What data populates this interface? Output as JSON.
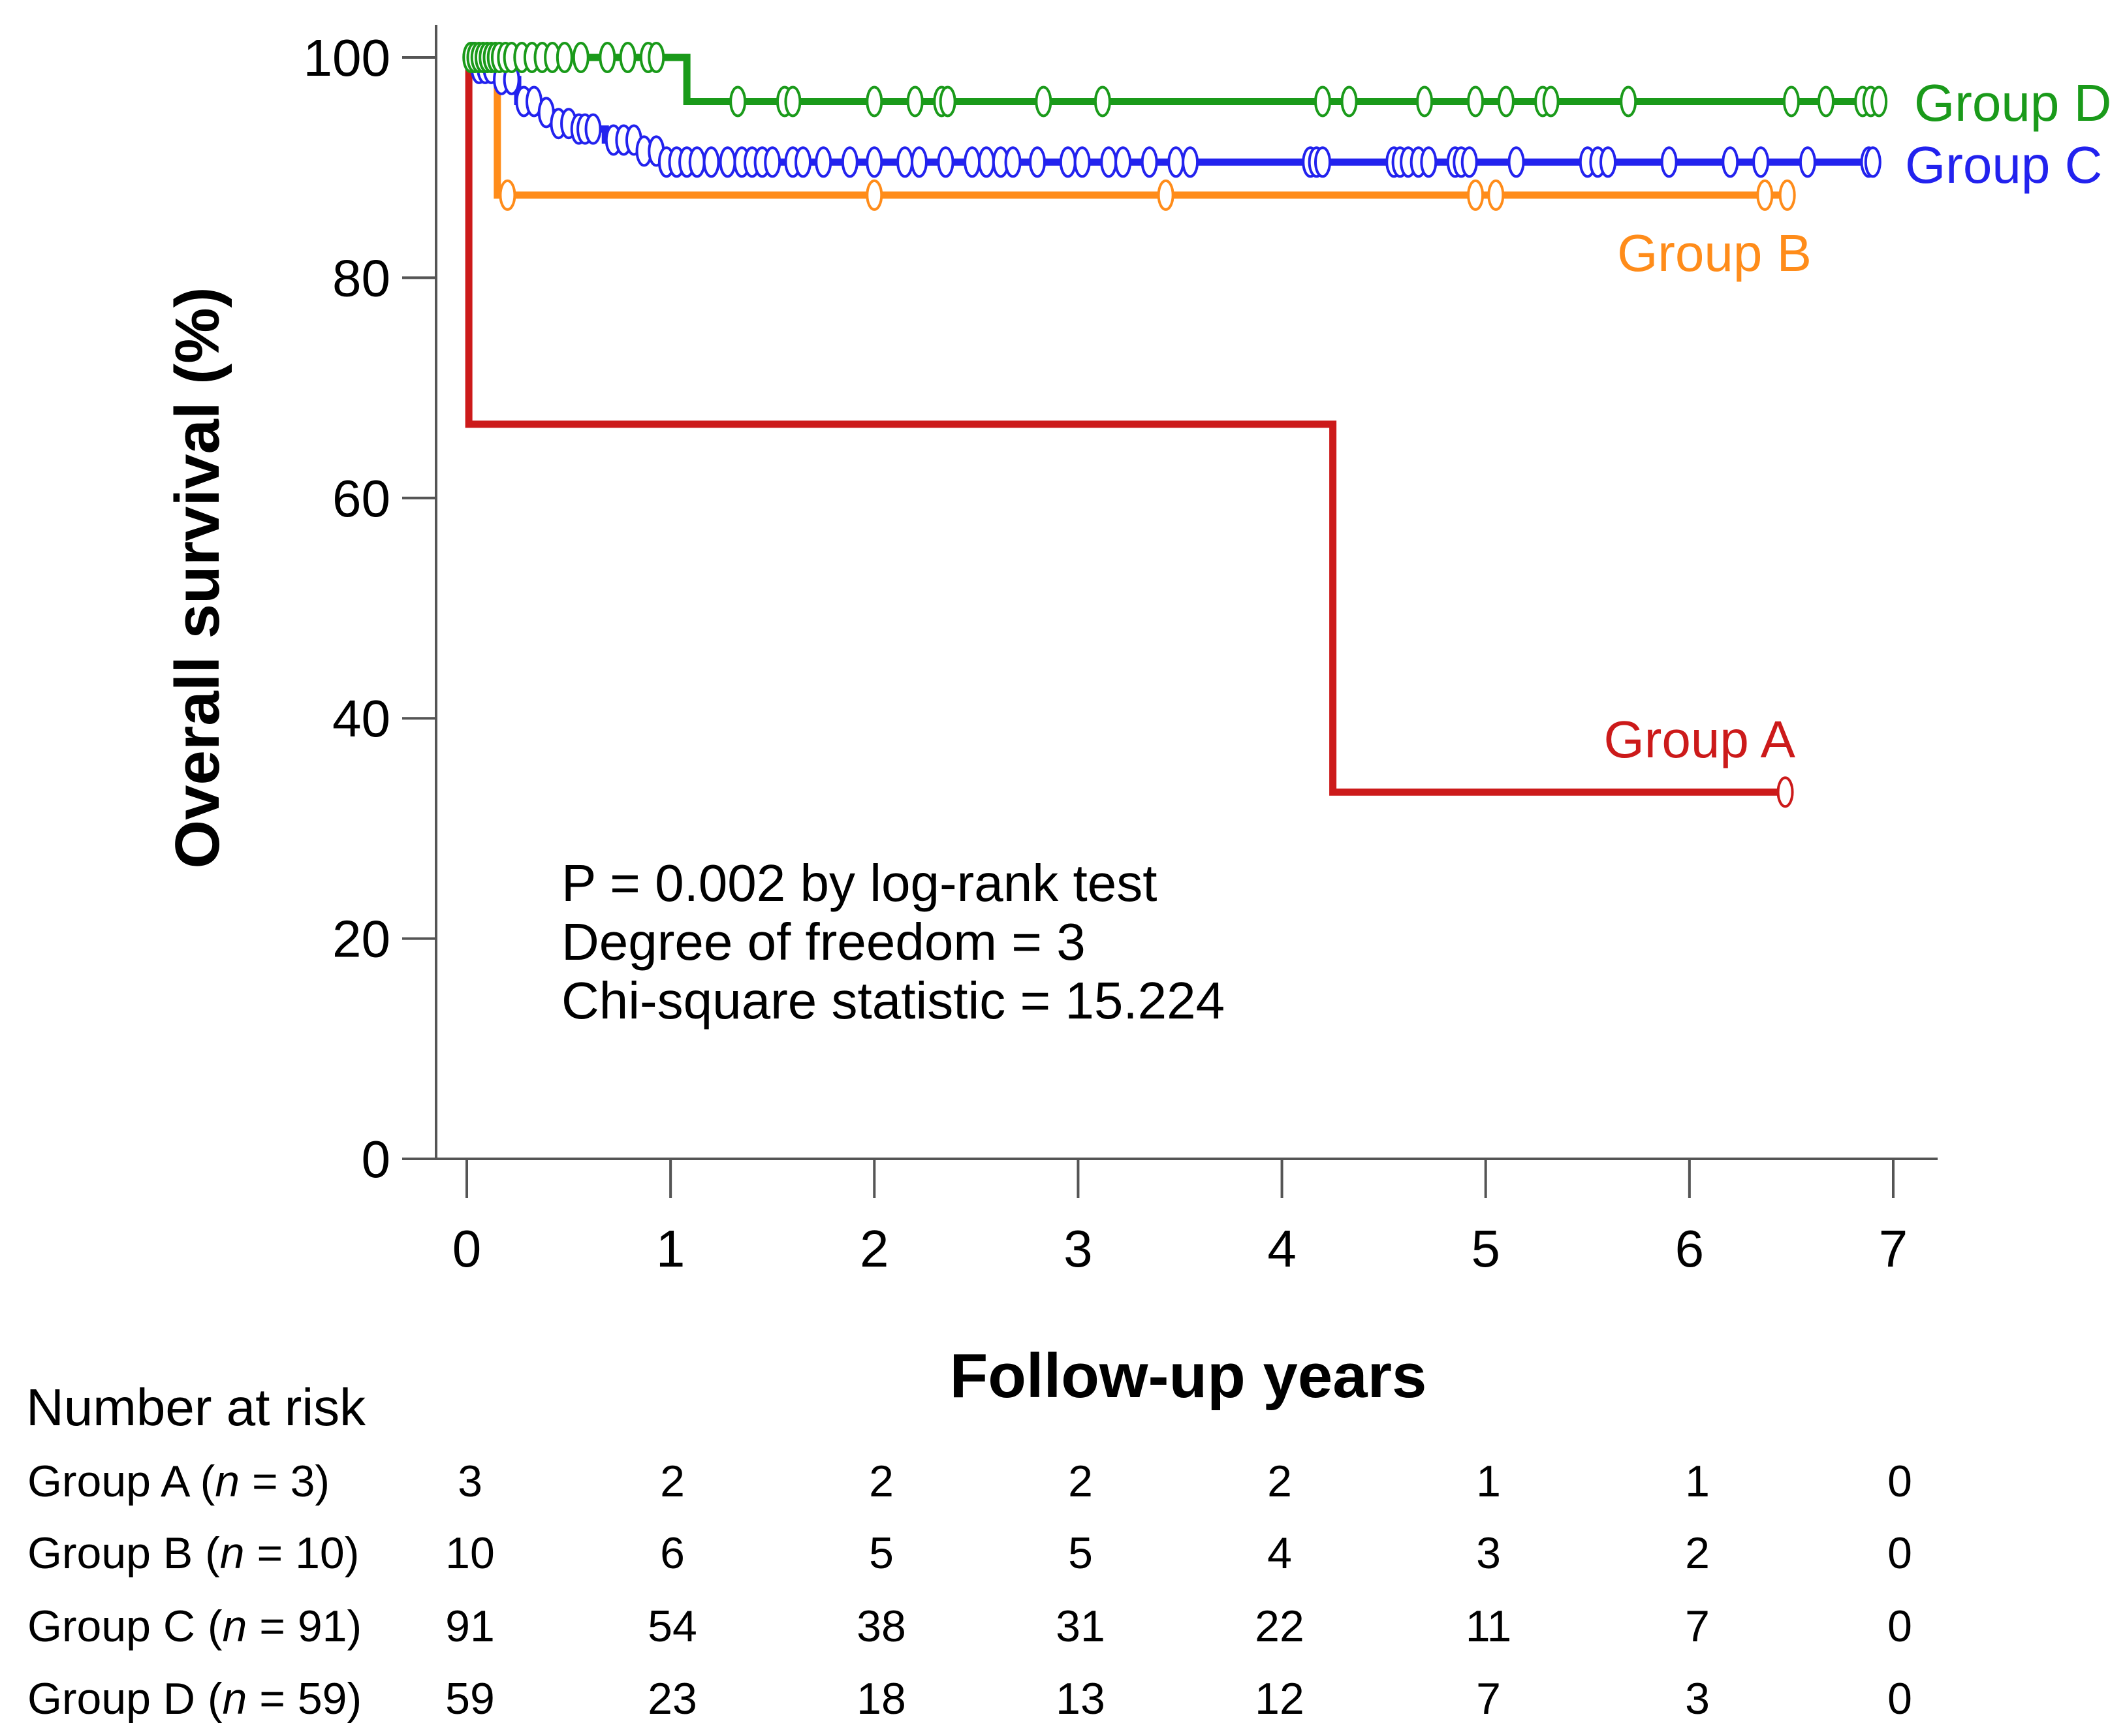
{
  "chart_data": {
    "type": "line",
    "subtype": "kaplan-meier",
    "ylabel": "Overall survival (%)",
    "xlabel": "Follow-up years",
    "xlim": [
      0,
      7
    ],
    "ylim": [
      0,
      100
    ],
    "x_ticks": [
      0,
      1,
      2,
      3,
      4,
      5,
      6,
      7
    ],
    "y_ticks": [
      0,
      20,
      40,
      60,
      80,
      100
    ],
    "grid": false,
    "annotation_lines": [
      "P = 0.002 by log-rank test",
      "Degree of freedom = 3",
      "Chi-square statistic = 15.224"
    ],
    "series": [
      {
        "name": "Group A",
        "color": "#cc1a1a",
        "steps": [
          [
            0,
            100
          ],
          [
            0.01,
            66.7
          ],
          [
            4.25,
            33.3
          ],
          [
            6.47,
            33.3
          ]
        ],
        "censor_times": [
          6.47
        ]
      },
      {
        "name": "Group B",
        "color": "#ff8c1a",
        "steps": [
          [
            0,
            100
          ],
          [
            0.15,
            87.5
          ],
          [
            6.48,
            87.5
          ]
        ],
        "censor_times": [
          0.2,
          2.0,
          3.43,
          4.95,
          5.05,
          6.37,
          6.48
        ]
      },
      {
        "name": "Group C",
        "color": "#2222ee",
        "steps": [
          [
            0,
            100
          ],
          [
            0.05,
            99
          ],
          [
            0.15,
            98
          ],
          [
            0.25,
            96
          ],
          [
            0.35,
            95
          ],
          [
            0.42,
            94
          ],
          [
            0.55,
            93.5
          ],
          [
            0.68,
            92.5
          ],
          [
            0.85,
            91.5
          ],
          [
            0.95,
            90.5
          ],
          [
            6.9,
            90.5
          ]
        ],
        "censor_times": [
          0.03,
          0.06,
          0.09,
          0.12,
          0.17,
          0.22,
          0.28,
          0.33,
          0.39,
          0.45,
          0.5,
          0.55,
          0.58,
          0.62,
          0.72,
          0.77,
          0.82,
          0.87,
          0.93,
          0.98,
          1.03,
          1.08,
          1.13,
          1.2,
          1.28,
          1.35,
          1.4,
          1.45,
          1.5,
          1.6,
          1.65,
          1.75,
          1.88,
          2.0,
          2.15,
          2.22,
          2.35,
          2.48,
          2.55,
          2.62,
          2.68,
          2.8,
          2.95,
          3.02,
          3.15,
          3.22,
          3.35,
          3.48,
          3.55,
          4.14,
          4.17,
          4.2,
          4.55,
          4.58,
          4.62,
          4.67,
          4.72,
          4.85,
          4.88,
          4.92,
          5.15,
          5.5,
          5.55,
          5.6,
          5.9,
          6.2,
          6.35,
          6.58,
          6.88,
          6.9
        ]
      },
      {
        "name": "Group D",
        "color": "#1a9a1a",
        "steps": [
          [
            0,
            100
          ],
          [
            1.08,
            96
          ],
          [
            6.93,
            96
          ]
        ],
        "censor_times": [
          0.02,
          0.04,
          0.06,
          0.08,
          0.1,
          0.12,
          0.14,
          0.16,
          0.19,
          0.22,
          0.27,
          0.32,
          0.37,
          0.42,
          0.48,
          0.56,
          0.69,
          0.79,
          0.89,
          0.93,
          1.33,
          1.56,
          1.6,
          2.0,
          2.2,
          2.33,
          2.36,
          2.83,
          3.12,
          4.2,
          4.33,
          4.7,
          4.95,
          5.1,
          5.28,
          5.32,
          5.7,
          6.5,
          6.67,
          6.85,
          6.89,
          6.93
        ]
      }
    ]
  },
  "risk_table": {
    "title": "Number at risk",
    "rows": [
      {
        "prefix": "Group A (",
        "n_symbol": "n",
        "suffix": " = 3)",
        "counts": [
          "3",
          "2",
          "2",
          "2",
          "2",
          "1",
          "1",
          "0"
        ]
      },
      {
        "prefix": "Group B (",
        "n_symbol": "n",
        "suffix": " = 10)",
        "counts": [
          "10",
          "6",
          "5",
          "5",
          "4",
          "3",
          "2",
          "0"
        ]
      },
      {
        "prefix": "Group C (",
        "n_symbol": "n",
        "suffix": " = 91)",
        "counts": [
          "91",
          "54",
          "38",
          "31",
          "22",
          "11",
          "7",
          "0"
        ]
      },
      {
        "prefix": "Group D (",
        "n_symbol": "n",
        "suffix": " = 59)",
        "counts": [
          "59",
          "23",
          "18",
          "13",
          "12",
          "7",
          "3",
          "0"
        ]
      }
    ]
  }
}
